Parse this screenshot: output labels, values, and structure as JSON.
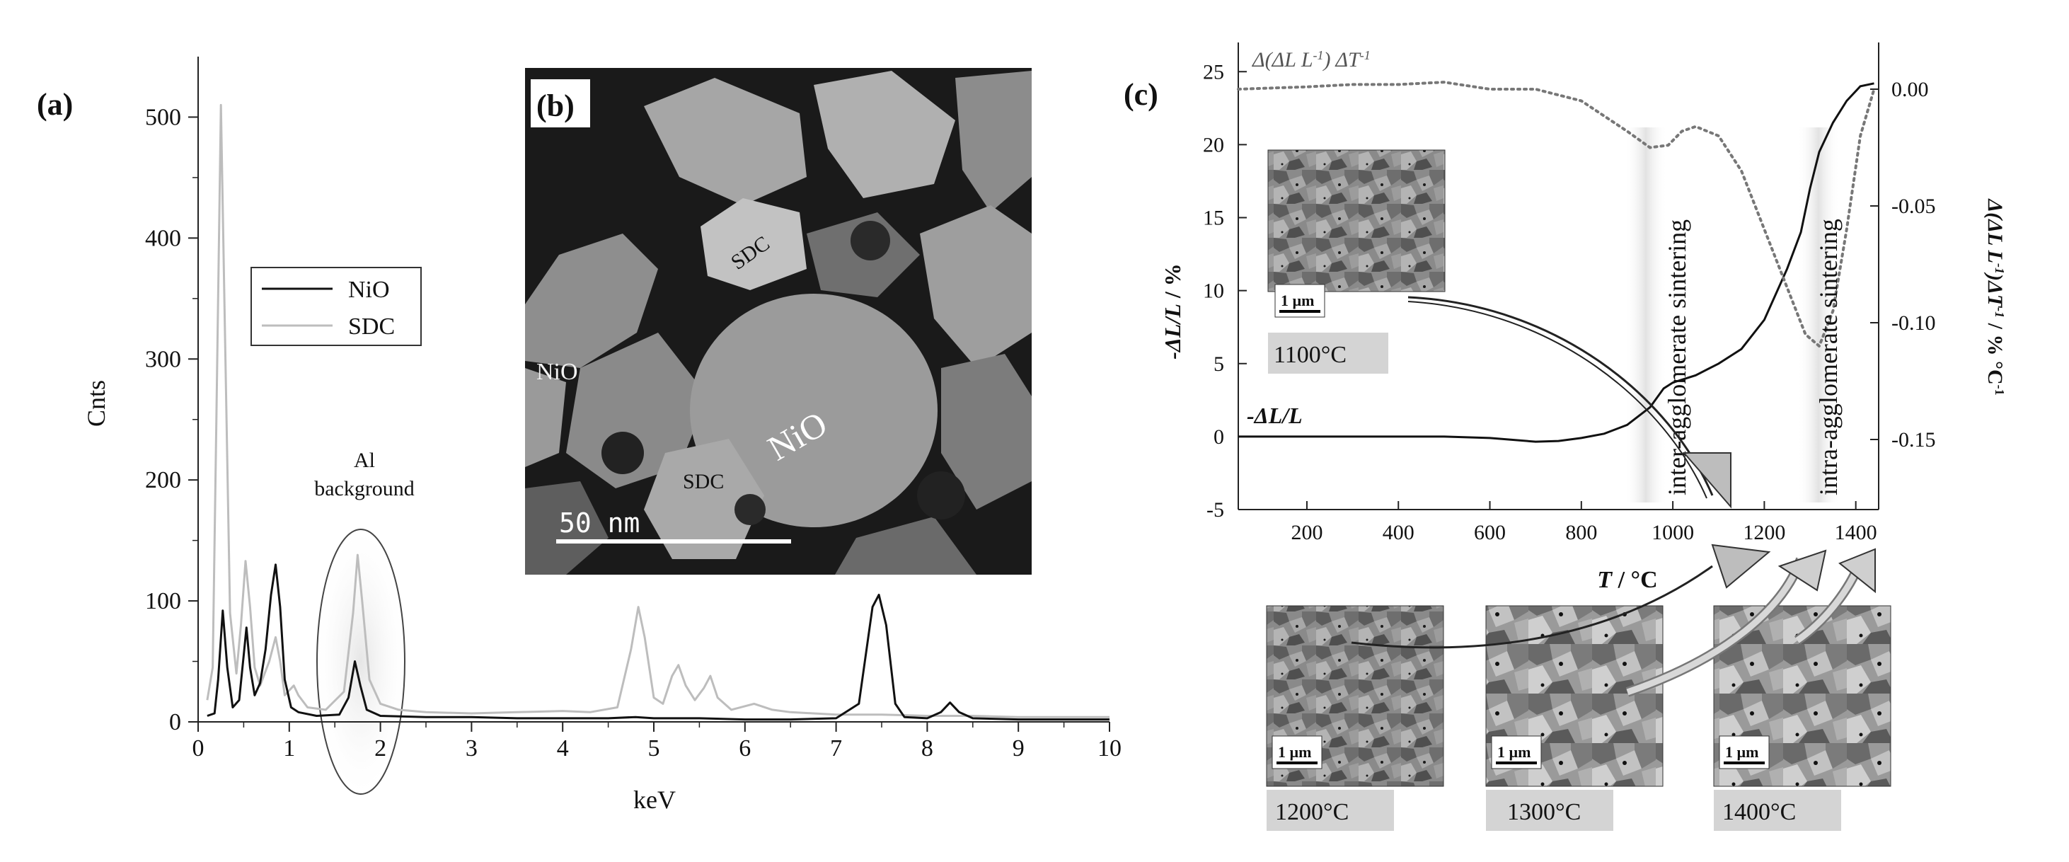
{
  "panels": {
    "a": "(a)",
    "b": "(b)",
    "c": "(c)"
  },
  "chart_data": [
    {
      "type": "line",
      "panel": "a",
      "xlabel": "keV",
      "ylabel": "Cnts",
      "xlim": [
        0,
        10
      ],
      "ylim": [
        0,
        550
      ],
      "xticks": [
        0,
        1,
        2,
        3,
        4,
        5,
        6,
        7,
        8,
        9,
        10
      ],
      "yticks": [
        0,
        100,
        200,
        300,
        400,
        500
      ],
      "legend_position": "upper-left",
      "annotation": [
        "Al",
        "background"
      ],
      "series": [
        {
          "name": "NiO",
          "color": "#111111",
          "points": [
            [
              0.1,
              5
            ],
            [
              0.18,
              7
            ],
            [
              0.22,
              35
            ],
            [
              0.27,
              92
            ],
            [
              0.32,
              45
            ],
            [
              0.38,
              12
            ],
            [
              0.45,
              18
            ],
            [
              0.5,
              55
            ],
            [
              0.53,
              78
            ],
            [
              0.57,
              45
            ],
            [
              0.62,
              22
            ],
            [
              0.68,
              32
            ],
            [
              0.74,
              60
            ],
            [
              0.8,
              105
            ],
            [
              0.85,
              130
            ],
            [
              0.9,
              95
            ],
            [
              0.95,
              35
            ],
            [
              1.02,
              12
            ],
            [
              1.1,
              8
            ],
            [
              1.3,
              5
            ],
            [
              1.55,
              6
            ],
            [
              1.65,
              20
            ],
            [
              1.72,
              50
            ],
            [
              1.78,
              30
            ],
            [
              1.85,
              10
            ],
            [
              2.0,
              5
            ],
            [
              2.5,
              4
            ],
            [
              3,
              4
            ],
            [
              3.5,
              3
            ],
            [
              4,
              3
            ],
            [
              4.5,
              3
            ],
            [
              4.8,
              4
            ],
            [
              5.0,
              3
            ],
            [
              5.5,
              3
            ],
            [
              6,
              2
            ],
            [
              6.5,
              2
            ],
            [
              7.0,
              3
            ],
            [
              7.25,
              15
            ],
            [
              7.4,
              95
            ],
            [
              7.47,
              105
            ],
            [
              7.55,
              80
            ],
            [
              7.65,
              15
            ],
            [
              7.75,
              4
            ],
            [
              8.0,
              3
            ],
            [
              8.15,
              8
            ],
            [
              8.25,
              16
            ],
            [
              8.35,
              8
            ],
            [
              8.5,
              3
            ],
            [
              9,
              2
            ],
            [
              9.5,
              2
            ],
            [
              10,
              2
            ]
          ]
        },
        {
          "name": "SDC",
          "color": "#bdbdbd",
          "points": [
            [
              0.1,
              18
            ],
            [
              0.16,
              45
            ],
            [
              0.2,
              250
            ],
            [
              0.25,
              510
            ],
            [
              0.3,
              300
            ],
            [
              0.35,
              90
            ],
            [
              0.42,
              40
            ],
            [
              0.47,
              80
            ],
            [
              0.52,
              133
            ],
            [
              0.57,
              95
            ],
            [
              0.62,
              45
            ],
            [
              0.68,
              30
            ],
            [
              0.78,
              50
            ],
            [
              0.85,
              70
            ],
            [
              0.9,
              50
            ],
            [
              0.95,
              22
            ],
            [
              1.05,
              30
            ],
            [
              1.1,
              22
            ],
            [
              1.2,
              12
            ],
            [
              1.4,
              10
            ],
            [
              1.6,
              25
            ],
            [
              1.7,
              90
            ],
            [
              1.75,
              138
            ],
            [
              1.8,
              100
            ],
            [
              1.88,
              35
            ],
            [
              2.0,
              15
            ],
            [
              2.2,
              10
            ],
            [
              2.5,
              8
            ],
            [
              3,
              7
            ],
            [
              3.5,
              8
            ],
            [
              4,
              9
            ],
            [
              4.3,
              8
            ],
            [
              4.6,
              12
            ],
            [
              4.75,
              60
            ],
            [
              4.83,
              95
            ],
            [
              4.9,
              70
            ],
            [
              5.0,
              20
            ],
            [
              5.1,
              15
            ],
            [
              5.2,
              38
            ],
            [
              5.27,
              47
            ],
            [
              5.35,
              30
            ],
            [
              5.45,
              18
            ],
            [
              5.55,
              28
            ],
            [
              5.62,
              38
            ],
            [
              5.7,
              20
            ],
            [
              5.85,
              10
            ],
            [
              6.1,
              15
            ],
            [
              6.3,
              10
            ],
            [
              6.5,
              8
            ],
            [
              7,
              6
            ],
            [
              7.5,
              6
            ],
            [
              8,
              5
            ],
            [
              8.5,
              5
            ],
            [
              9,
              4
            ],
            [
              9.5,
              4
            ],
            [
              10,
              4
            ]
          ]
        }
      ]
    },
    {
      "type": "line",
      "panel": "c",
      "xlabel": "T / °C",
      "ylabel": "-ΔL/L / %",
      "y2label": "Δ(ΔL L⁻¹) ΔT⁻¹ / % °C⁻¹",
      "xlim": [
        50,
        1450
      ],
      "ylim": [
        -5,
        27
      ],
      "y2lim": [
        -0.18,
        0.02
      ],
      "xticks": [
        200,
        400,
        600,
        800,
        1000,
        1200,
        1400
      ],
      "yticks": [
        -5,
        0,
        5,
        10,
        15,
        20,
        25
      ],
      "y2ticks": [
        0.0,
        -0.05,
        -0.1,
        -0.15
      ],
      "y2ticklabels": [
        "0.00",
        "-0.05",
        "-0.10",
        "-0.15"
      ],
      "series": [
        {
          "name": "-ΔL/L",
          "color": "#111111",
          "style": "solid",
          "points": [
            [
              50,
              0
            ],
            [
              200,
              0
            ],
            [
              400,
              0
            ],
            [
              500,
              0
            ],
            [
              600,
              -0.1
            ],
            [
              700,
              -0.35
            ],
            [
              750,
              -0.3
            ],
            [
              800,
              -0.1
            ],
            [
              850,
              0.2
            ],
            [
              900,
              0.8
            ],
            [
              950,
              2.0
            ],
            [
              980,
              3.3
            ],
            [
              1000,
              3.7
            ],
            [
              1050,
              4.2
            ],
            [
              1100,
              5.0
            ],
            [
              1150,
              6.0
            ],
            [
              1200,
              8.0
            ],
            [
              1250,
              11.5
            ],
            [
              1280,
              14.0
            ],
            [
              1300,
              17.0
            ],
            [
              1320,
              19.5
            ],
            [
              1350,
              21.5
            ],
            [
              1380,
              23.0
            ],
            [
              1410,
              24.0
            ],
            [
              1440,
              24.2
            ]
          ]
        },
        {
          "name": "Δ(ΔL L⁻¹) ΔT⁻¹",
          "color": "#777777",
          "style": "dotted",
          "points": [
            [
              50,
              0.0
            ],
            [
              200,
              0.001
            ],
            [
              300,
              0.002
            ],
            [
              400,
              0.002
            ],
            [
              500,
              0.003
            ],
            [
              600,
              0.0
            ],
            [
              700,
              0.0
            ],
            [
              800,
              -0.005
            ],
            [
              900,
              -0.018
            ],
            [
              950,
              -0.025
            ],
            [
              990,
              -0.024
            ],
            [
              1020,
              -0.018
            ],
            [
              1050,
              -0.016
            ],
            [
              1100,
              -0.02
            ],
            [
              1150,
              -0.035
            ],
            [
              1200,
              -0.06
            ],
            [
              1250,
              -0.085
            ],
            [
              1290,
              -0.105
            ],
            [
              1320,
              -0.11
            ],
            [
              1350,
              -0.095
            ],
            [
              1380,
              -0.06
            ],
            [
              1410,
              -0.02
            ],
            [
              1440,
              0.0
            ]
          ]
        }
      ],
      "annotations": [
        "inter-agglomerate sintering",
        "intra-agglomerate sintering"
      ]
    }
  ],
  "micrograph_b": {
    "labels": [
      "SDC",
      "NiO",
      "NiO",
      "SDC"
    ],
    "scalebar": "50 nm"
  },
  "micrographs_c": [
    {
      "temperature": "1100°C",
      "scale": "1 µm"
    },
    {
      "temperature": "1200°C",
      "scale": "1 µm"
    },
    {
      "temperature": "1300°C",
      "scale": "1 µm"
    },
    {
      "temperature": "1400°C",
      "scale": "1 µm"
    }
  ]
}
